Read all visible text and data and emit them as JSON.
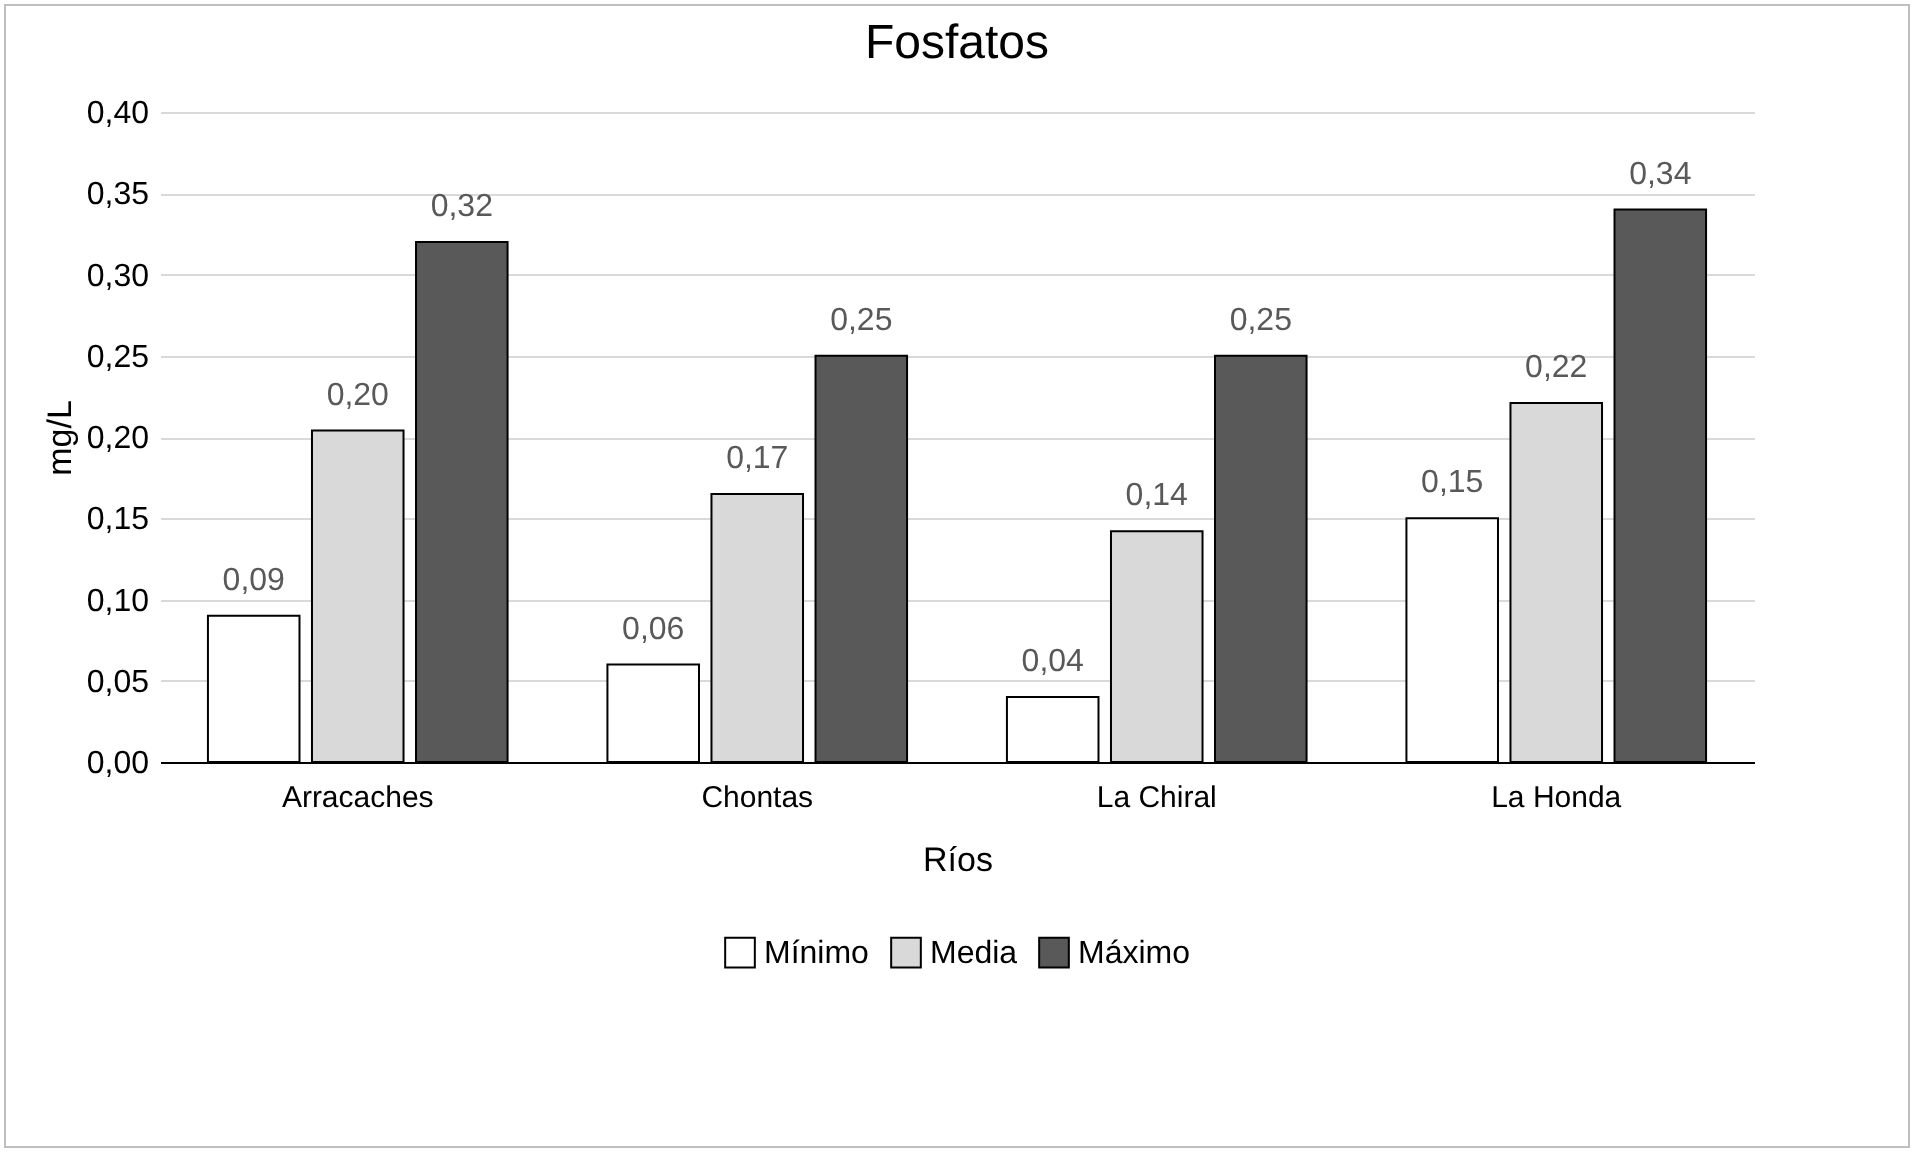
{
  "chart_data": {
    "type": "bar",
    "title": "Fosfatos",
    "xlabel": "Ríos",
    "ylabel": "mg/L",
    "categories": [
      "Arracaches",
      "Chontas",
      "La Chiral",
      "La Honda"
    ],
    "series": [
      {
        "name": "Mínimo",
        "color": "#ffffff",
        "values": [
          0.09,
          0.06,
          0.04,
          0.15
        ],
        "value_labels": [
          "0,09",
          "0,06",
          "0,04",
          "0,15"
        ]
      },
      {
        "name": "Media",
        "color": "#d9d9d9",
        "values": [
          0.204,
          0.165,
          0.142,
          0.221
        ],
        "value_labels": [
          "0,20",
          "0,17",
          "0,14",
          "0,22"
        ]
      },
      {
        "name": "Máximo",
        "color": "#595959",
        "values": [
          0.32,
          0.25,
          0.25,
          0.34
        ],
        "value_labels": [
          "0,32",
          "0,25",
          "0,25",
          "0,34"
        ]
      }
    ],
    "ylim": [
      0,
      0.4
    ],
    "yticks": [
      {
        "value": 0,
        "label": "0,00"
      },
      {
        "value": 0.05,
        "label": "0,05"
      },
      {
        "value": 0.1,
        "label": "0,10"
      },
      {
        "value": 0.15,
        "label": "0,15"
      },
      {
        "value": 0.2,
        "label": "0,20"
      },
      {
        "value": 0.25,
        "label": "0,25"
      },
      {
        "value": 0.3,
        "label": "0,30"
      },
      {
        "value": 0.35,
        "label": "0,35"
      },
      {
        "value": 0.4,
        "label": "0,40"
      }
    ],
    "grid": "y",
    "legend": "bottom"
  }
}
